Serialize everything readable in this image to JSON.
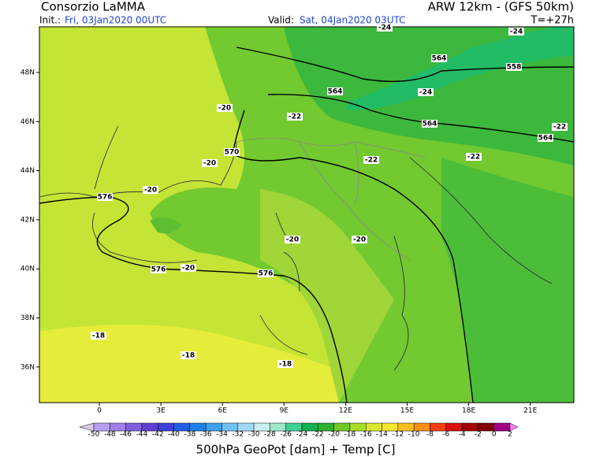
{
  "header": {
    "title": "Consorzio LaMMA",
    "model": "ARW 12km - (GFS 50km)",
    "init_label": "Init.:",
    "init_time": "Fri, 03Jan2020 00UTC",
    "valid_label": "Valid:",
    "valid_time": "Sat, 04Jan2020 03UTC",
    "lead_time": "T=+27h"
  },
  "map": {
    "lat_labels": [
      "48N",
      "46N",
      "44N",
      "42N",
      "40N",
      "38N",
      "36N"
    ],
    "lon_labels": [
      "0",
      "3E",
      "6E",
      "9E",
      "12E",
      "15E",
      "18E",
      "21E"
    ],
    "contour_labels": [
      "-24",
      "-24",
      "564",
      "558",
      "564",
      "-24",
      "-20",
      "-22",
      "564",
      "-22",
      "564",
      "570",
      "-20",
      "-22",
      "-22",
      "-20",
      "576",
      "-20",
      "-20",
      "576",
      "-20",
      "576",
      "-18",
      "-18",
      "-18"
    ]
  },
  "colorbar": {
    "labels": [
      "-50",
      "-48",
      "-46",
      "-44",
      "-42",
      "-40",
      "-38",
      "-36",
      "-34",
      "-32",
      "-30",
      "-28",
      "-26",
      "-24",
      "-22",
      "-20",
      "-18",
      "-16",
      "-14",
      "-12",
      "-10",
      "-8",
      "-6",
      "-4",
      "-2",
      "0",
      "2"
    ],
    "colors": [
      "#dcc8f0",
      "#b8a0f0",
      "#a080e8",
      "#8060e0",
      "#6040d0",
      "#4040d8",
      "#2060e0",
      "#2080e8",
      "#40a0f0",
      "#70c0f8",
      "#a0d8f8",
      "#c8f0f0",
      "#a0e8c8",
      "#40d090",
      "#10b050",
      "#30b030",
      "#70c828",
      "#a8dc28",
      "#d8e830",
      "#f8e830",
      "#f8c020",
      "#f89018",
      "#f04010",
      "#d81010",
      "#a00000",
      "#800000",
      "#a00080",
      "#ff80ff"
    ]
  },
  "footer": "500hPa GeoPot [dam] + Temp [C]"
}
